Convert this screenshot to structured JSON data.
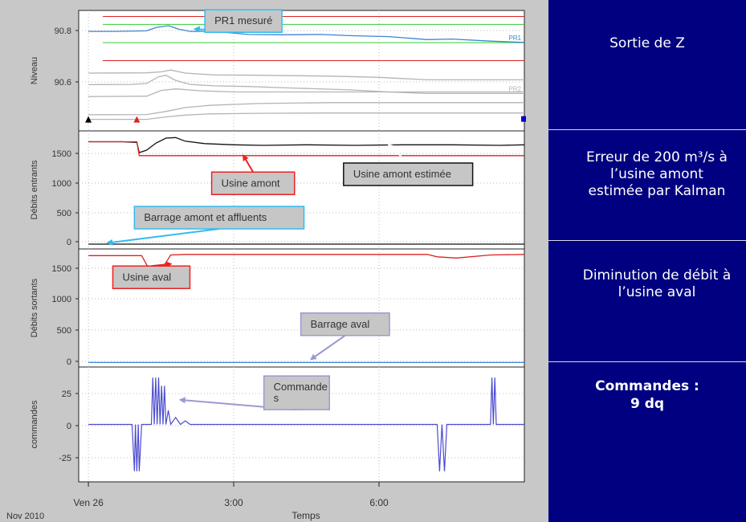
{
  "colors": {
    "panel_bg": "#c8c8c8",
    "plot_bg": "#ffffff",
    "right_panel_bg": "#000080",
    "red": "#dd2222",
    "green": "#33cc33",
    "blue_series": "#3a86d6",
    "gray_series": "#b4b4b4",
    "purple_command": "#4b4bd0",
    "annotation_cyan": "#33bbee",
    "annotation_red": "#ee2222",
    "annotation_purple": "#9a9ad2",
    "annotation_fill": "#c6c6c6"
  },
  "footer": {
    "date_label": "Nov 2010",
    "xlabel": "Temps",
    "x_ticks": [
      "Ven 26",
      "3:00",
      "6:00"
    ]
  },
  "right_panel": {
    "s1": "Sortie de Z",
    "s2_l1": "Erreur de 200 m³/s à",
    "s2_l2": "l’usine amont",
    "s2_l3": "estimée par Kalman",
    "s3_l1": "Diminution de débit à",
    "s3_l2": "l’usine aval",
    "s4_l1": "Commandes :",
    "s4_l2": "9 dq"
  },
  "chart_data": [
    {
      "type": "line",
      "ylabel": "Niveau",
      "y_ticks": [
        "90.8",
        "90.6"
      ],
      "ylim": [
        90.47,
        90.85
      ],
      "x_unit": "hours since Ven 26 00:00",
      "xlim": [
        -0.2,
        9
      ],
      "series_labels": [
        "PR1",
        "PR2"
      ],
      "series": [
        {
          "name": "PR1",
          "color": "#3a86d6",
          "x": [
            0,
            0.5,
            1.2,
            1.4,
            1.65,
            1.85,
            2.1,
            2.6,
            3.3,
            4.0,
            4.8,
            5.4,
            6.2,
            7.0,
            7.5,
            8.3,
            9.0
          ],
          "y": [
            90.789,
            90.789,
            90.791,
            90.802,
            90.808,
            90.797,
            90.789,
            90.789,
            90.779,
            90.778,
            90.779,
            90.775,
            90.772,
            90.762,
            90.764,
            90.757,
            90.753
          ]
        },
        {
          "name": "PR2",
          "color": "#b4b4b4",
          "x": [
            0,
            0.9,
            1.2,
            1.45,
            1.6,
            1.8,
            2.1,
            2.6,
            3.3,
            4.2,
            5.4,
            6.2,
            7.0,
            8.5,
            9.0
          ],
          "y": [
            90.614,
            90.615,
            90.618,
            90.64,
            90.645,
            90.628,
            90.615,
            90.61,
            90.608,
            90.603,
            90.597,
            90.59,
            90.585,
            90.585,
            90.585
          ]
        },
        {
          "name": "",
          "color": "#b4b4b4",
          "x": [
            0,
            1.2,
            1.5,
            1.7,
            2.0,
            2.6,
            3.5,
            5.0,
            6.0,
            7.0,
            9.0
          ],
          "y": [
            90.652,
            90.653,
            90.656,
            90.662,
            90.652,
            90.646,
            90.645,
            90.642,
            90.638,
            90.63,
            90.63
          ]
        },
        {
          "name": "",
          "color": "#b4b4b4",
          "x": [
            0,
            1.2,
            1.5,
            1.8,
            2.3,
            3.0,
            4.5,
            6.0,
            9.0
          ],
          "y": [
            90.575,
            90.576,
            90.595,
            90.6,
            90.594,
            90.59,
            90.59,
            90.59,
            90.59
          ]
        },
        {
          "name": "",
          "color": "#b4b4b4",
          "x": [
            0,
            1.2,
            1.6,
            2.0,
            2.5,
            3.5,
            5.0,
            9.0
          ],
          "y": [
            90.515,
            90.516,
            90.526,
            90.539,
            90.546,
            90.552,
            90.555,
            90.555
          ]
        },
        {
          "name": "",
          "color": "#b4b4b4",
          "x": [
            0,
            1.2,
            1.6,
            2.0,
            2.5,
            3.5,
            5.0,
            9.0
          ],
          "y": [
            90.5,
            90.5,
            90.508,
            90.514,
            90.518,
            90.52,
            90.521,
            90.521
          ]
        }
      ],
      "hlines": [
        {
          "y": 90.838,
          "color": "#dd2222"
        },
        {
          "y": 90.812,
          "color": "#33cc33"
        },
        {
          "y": 90.752,
          "color": "#33cc33"
        },
        {
          "y": 90.693,
          "color": "#dd2222"
        }
      ],
      "markers": [
        {
          "x": 0,
          "y": 90.5,
          "shape": "triangle",
          "color": "#000000"
        },
        {
          "x": 1.0,
          "y": 90.5,
          "shape": "triangle",
          "color": "#dd2222"
        },
        {
          "x": 9.0,
          "y": 90.5,
          "shape": "square",
          "color": "#0000cc"
        }
      ],
      "annotations": [
        {
          "text": "PR1 mesuré",
          "style": "cyan",
          "x": 3.2,
          "y": 90.823,
          "pointer_x": 2.2,
          "pointer_y": 90.797
        }
      ]
    },
    {
      "type": "line",
      "ylabel": "Débits entrants",
      "y_ticks": [
        "1500",
        "1000",
        "500",
        "0"
      ],
      "ylim": [
        -30,
        1850
      ],
      "xlim": [
        -0.2,
        9
      ],
      "series": [
        {
          "name": "",
          "color": "#111111",
          "x": [
            0,
            0.7,
            1.0,
            1.05,
            1.2,
            1.4,
            1.6,
            1.8,
            2.0,
            2.4,
            3.0,
            3.6,
            4.5,
            5.5,
            6.5,
            7.5,
            8.5,
            9.0
          ],
          "y": [
            1710,
            1710,
            1700,
            1530,
            1570,
            1690,
            1770,
            1780,
            1720,
            1680,
            1660,
            1650,
            1660,
            1650,
            1660,
            1660,
            1650,
            1660
          ]
        },
        {
          "name": "",
          "color": "#dd2222",
          "x": [
            0,
            1.0,
            1.05,
            9.0
          ],
          "y": [
            1710,
            1710,
            1480,
            1480
          ]
        },
        {
          "name": "",
          "color": "#111111",
          "x": [
            0,
            9.0
          ],
          "y": [
            10,
            10
          ]
        }
      ],
      "annotations": [
        {
          "text": "Usine amont",
          "style": "red",
          "x": 3.4,
          "y": 1020,
          "pointer_x": 3.2,
          "pointer_y": 1480
        },
        {
          "text": "Usine amont estimée",
          "style": "black",
          "x": 6.6,
          "y": 1170,
          "pointer_x": 6.2,
          "pointer_y": 1660
        },
        {
          "text": "Barrage amont et affluents",
          "style": "cyan",
          "x": 2.7,
          "y": 450,
          "pointer_x": 0.4,
          "pointer_y": 30
        }
      ]
    },
    {
      "type": "line",
      "ylabel": "Débits sortants",
      "y_ticks": [
        "1500",
        "1000",
        "500",
        "0"
      ],
      "ylim": [
        -30,
        1850
      ],
      "xlim": [
        -0.2,
        9
      ],
      "series": [
        {
          "name": "",
          "color": "#dd2222",
          "x": [
            0,
            1.0,
            1.1,
            1.25,
            1.45,
            1.55,
            1.7,
            2.0,
            7.0,
            7.2,
            7.6,
            8.3,
            9.0
          ],
          "y": [
            1780,
            1780,
            1780,
            1560,
            1560,
            1600,
            1790,
            1800,
            1800,
            1760,
            1740,
            1790,
            1800
          ]
        },
        {
          "name": "",
          "color": "#3a86d6",
          "x": [
            0,
            9.0
          ],
          "y": [
            5,
            5
          ]
        }
      ],
      "annotations": [
        {
          "text": "Usine aval",
          "style": "red",
          "x": 1.3,
          "y": 1420,
          "pointer_x": 1.7,
          "pointer_y": 1640
        },
        {
          "text": "Barrage aval",
          "style": "purple",
          "x": 5.3,
          "y": 640,
          "pointer_x": 4.6,
          "pointer_y": 60
        }
      ]
    },
    {
      "type": "line",
      "ylabel": "commandes",
      "y_ticks": [
        "25",
        "0",
        "-25"
      ],
      "ylim": [
        -47,
        47
      ],
      "xlim": [
        -0.2,
        9
      ],
      "series": [
        {
          "name": "",
          "color": "#4b4bd0",
          "x": [
            0,
            0.9,
            0.95,
            0.97,
            1.0,
            1.03,
            1.05,
            1.1,
            1.3,
            1.33,
            1.36,
            1.39,
            1.42,
            1.45,
            1.48,
            1.51,
            1.54,
            1.57,
            1.6,
            1.65,
            1.7,
            1.8,
            1.9,
            2.0,
            2.1,
            7.2,
            7.25,
            7.3,
            7.35,
            7.4,
            8.3,
            8.33,
            8.36,
            8.39,
            8.42,
            8.45,
            9.0
          ],
          "y": [
            0,
            0,
            -40,
            0,
            -40,
            0,
            -40,
            0,
            0,
            40,
            0,
            40,
            0,
            40,
            0,
            33,
            0,
            33,
            0,
            12,
            0,
            6,
            0,
            3,
            0,
            0,
            -40,
            0,
            -40,
            0,
            0,
            40,
            0,
            40,
            0,
            0,
            0
          ]
        }
      ],
      "annotations": [
        {
          "text": "Commande s",
          "style": "purple",
          "x": 4.3,
          "y": 27,
          "pointer_x": 1.9,
          "pointer_y": 21
        }
      ]
    }
  ]
}
